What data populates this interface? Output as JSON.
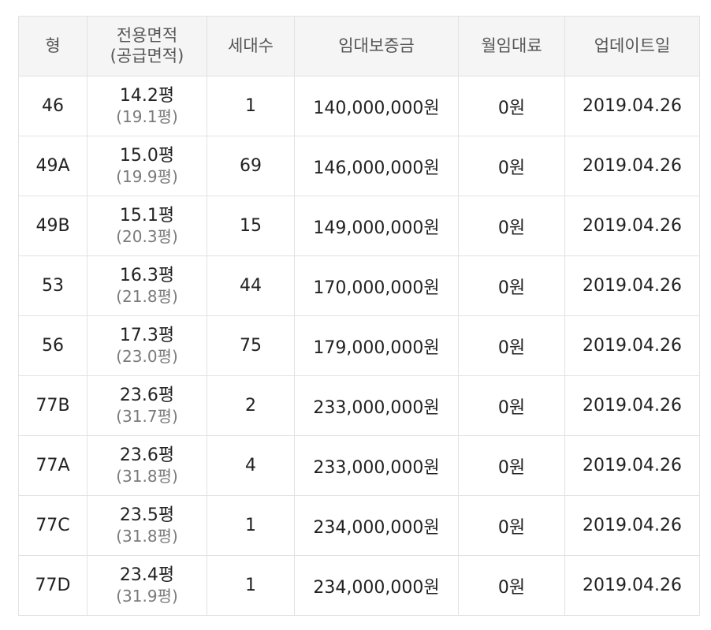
{
  "headers": {
    "type": "형",
    "area_line1": "전용면적",
    "area_line2": "(공급면적)",
    "households": "세대수",
    "deposit": "임대보증금",
    "monthly_rent": "월임대료",
    "updated": "업데이트일"
  },
  "rows": [
    {
      "type": "46",
      "area": "14.2평",
      "supply": "(19.1평)",
      "households": "1",
      "deposit": "140,000,000원",
      "rent": "0원",
      "updated": "2019.04.26"
    },
    {
      "type": "49A",
      "area": "15.0평",
      "supply": "(19.9평)",
      "households": "69",
      "deposit": "146,000,000원",
      "rent": "0원",
      "updated": "2019.04.26"
    },
    {
      "type": "49B",
      "area": "15.1평",
      "supply": "(20.3평)",
      "households": "15",
      "deposit": "149,000,000원",
      "rent": "0원",
      "updated": "2019.04.26"
    },
    {
      "type": "53",
      "area": "16.3평",
      "supply": "(21.8평)",
      "households": "44",
      "deposit": "170,000,000원",
      "rent": "0원",
      "updated": "2019.04.26"
    },
    {
      "type": "56",
      "area": "17.3평",
      "supply": "(23.0평)",
      "households": "75",
      "deposit": "179,000,000원",
      "rent": "0원",
      "updated": "2019.04.26"
    },
    {
      "type": "77B",
      "area": "23.6평",
      "supply": "(31.7평)",
      "households": "2",
      "deposit": "233,000,000원",
      "rent": "0원",
      "updated": "2019.04.26"
    },
    {
      "type": "77A",
      "area": "23.6평",
      "supply": "(31.8평)",
      "households": "4",
      "deposit": "233,000,000원",
      "rent": "0원",
      "updated": "2019.04.26"
    },
    {
      "type": "77C",
      "area": "23.5평",
      "supply": "(31.8평)",
      "households": "1",
      "deposit": "234,000,000원",
      "rent": "0원",
      "updated": "2019.04.26"
    },
    {
      "type": "77D",
      "area": "23.4평",
      "supply": "(31.9평)",
      "households": "1",
      "deposit": "234,000,000원",
      "rent": "0원",
      "updated": "2019.04.26"
    }
  ]
}
